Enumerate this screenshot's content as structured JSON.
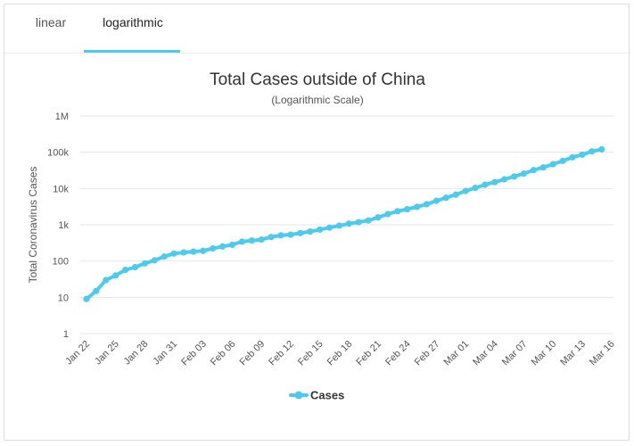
{
  "tabs": [
    {
      "label": "linear",
      "active": false
    },
    {
      "label": "logarithmic",
      "active": true
    }
  ],
  "accent_color": "#4ccbee",
  "chart_data": {
    "type": "line",
    "title": "Total Cases outside of China",
    "subtitle": "(Logarithmic Scale)",
    "ylabel": "Total Coronavirus Cases",
    "xlabel": "",
    "yscale": "log",
    "ylim": [
      1,
      1000000
    ],
    "y_ticks": [
      {
        "value": 1,
        "label": "1"
      },
      {
        "value": 10,
        "label": "10"
      },
      {
        "value": 100,
        "label": "100"
      },
      {
        "value": 1000,
        "label": "1k"
      },
      {
        "value": 10000,
        "label": "10k"
      },
      {
        "value": 100000,
        "label": "100k"
      },
      {
        "value": 1000000,
        "label": "1M"
      }
    ],
    "x_ticks": [
      "Jan 22",
      "Jan 25",
      "Jan 28",
      "Jan 31",
      "Feb 03",
      "Feb 06",
      "Feb 09",
      "Feb 12",
      "Feb 15",
      "Feb 18",
      "Feb 21",
      "Feb 24",
      "Feb 27",
      "Mar 01",
      "Mar 04",
      "Mar 07",
      "Mar 10",
      "Mar 13",
      "Mar 16"
    ],
    "x_tick_index": [
      0,
      3,
      6,
      9,
      12,
      15,
      18,
      21,
      24,
      27,
      30,
      33,
      36,
      39,
      42,
      45,
      48,
      51,
      54
    ],
    "legend": "Cases",
    "legend_position": "bottom-center",
    "series": [
      {
        "name": "Cases",
        "color": "#4ccbee",
        "values": [
          9,
          15,
          30,
          40,
          57,
          68,
          86,
          105,
          133,
          161,
          173,
          182,
          191,
          223,
          253,
          281,
          342,
          368,
          390,
          460,
          511,
          535,
          591,
          652,
          735,
          836,
          947,
          1073,
          1182,
          1314,
          1599,
          1972,
          2358,
          2687,
          3120,
          3683,
          4583,
          5562,
          6793,
          8567,
          10440,
          12680,
          14980,
          17950,
          21390,
          25750,
          32080,
          38200,
          46770,
          57760,
          72650,
          85800,
          105670,
          120000
        ]
      }
    ]
  }
}
